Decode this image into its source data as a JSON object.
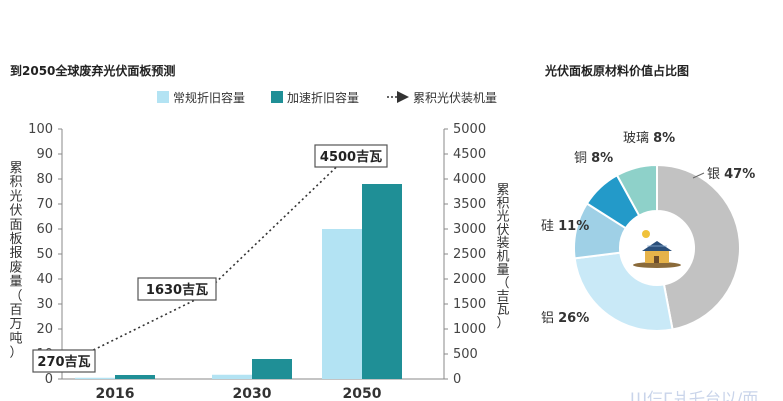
{
  "chart_data": [
    {
      "type": "bar",
      "title": "到2050全球废弃光伏面板预测",
      "categories": [
        "2016",
        "2030",
        "2050"
      ],
      "series": [
        {
          "name": "常规折旧容量",
          "axis": "left",
          "color": "#b3e3f3",
          "values": [
            0.5,
            1.7,
            60
          ]
        },
        {
          "name": "加速折旧容量",
          "axis": "left",
          "color": "#1f8f96",
          "values": [
            1.6,
            8,
            78
          ]
        },
        {
          "name": "累积光伏装机量",
          "axis": "right",
          "style": "dotted-arrow",
          "values": [
            270,
            1630,
            4500
          ]
        }
      ],
      "ylabel": "累积光伏面板报废量（百万吨）",
      "ylabel_right": "累积光伏装机量（吉瓦）",
      "ylim": [
        0,
        100
      ],
      "ylim_right": [
        0,
        5000
      ],
      "yticks": [
        0,
        10,
        20,
        30,
        40,
        50,
        60,
        70,
        80,
        90,
        100
      ],
      "yticks_right": [
        0,
        500,
        1000,
        1500,
        2000,
        2500,
        3000,
        3500,
        4000,
        4500,
        5000
      ],
      "annotations": [
        "270吉瓦",
        "1630吉瓦",
        "4500吉瓦"
      ],
      "legend_position": "top"
    },
    {
      "type": "pie",
      "title": "光伏面板原材料价值占比图",
      "slices": [
        {
          "label": "银",
          "value": 47,
          "display": "47%",
          "color": "#c2c2c2"
        },
        {
          "label": "铝",
          "value": 26,
          "display": "26%",
          "color": "#c9e9f7"
        },
        {
          "label": "硅",
          "value": 11,
          "display": "11%",
          "color": "#9fd0e6"
        },
        {
          "label": "铜",
          "value": 8,
          "display": "8%",
          "color": "#239ac9"
        },
        {
          "label": "玻璃",
          "value": 8,
          "display": "8%",
          "color": "#8ed1c9"
        }
      ]
    }
  ],
  "watermark": "Ш仨Г爿乇台以/而"
}
